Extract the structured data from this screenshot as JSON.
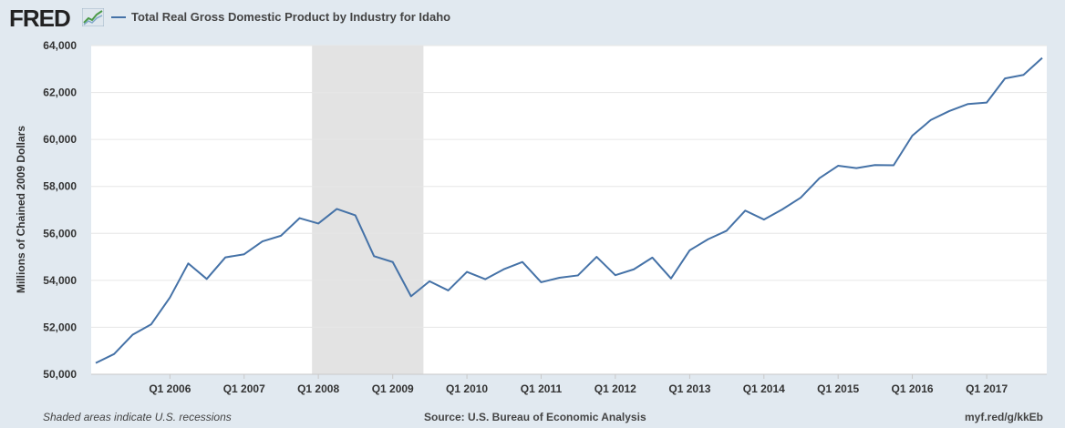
{
  "header": {
    "logo_text": "FRED",
    "legend_label": "Total Real Gross Domestic Product by Industry for Idaho"
  },
  "footer": {
    "note": "Shaded areas indicate U.S. recessions",
    "source": "Source: U.S. Bureau of Economic Analysis",
    "link": "myf.red/g/kkEb"
  },
  "colors": {
    "series": "#4572a7",
    "recession": "#e3e3e3",
    "background": "#e1e9f0",
    "plot_bg": "#ffffff"
  },
  "chart_data": {
    "type": "line",
    "title": "",
    "xlabel": "",
    "ylabel": "Millions of Chained 2009 Dollars",
    "ylim": [
      50000,
      64000
    ],
    "yticks": [
      50000,
      52000,
      54000,
      56000,
      58000,
      60000,
      62000,
      64000
    ],
    "ytick_labels": [
      "50,000",
      "52,000",
      "54,000",
      "56,000",
      "58,000",
      "60,000",
      "62,000",
      "64,000"
    ],
    "xlim": [
      "2005-01-01",
      "2017-10-01"
    ],
    "xticks": [
      "2006-01-01",
      "2007-01-01",
      "2008-01-01",
      "2009-01-01",
      "2010-01-01",
      "2011-01-01",
      "2012-01-01",
      "2013-01-01",
      "2014-01-01",
      "2015-01-01",
      "2016-01-01",
      "2017-01-01"
    ],
    "xtick_labels": [
      "Q1 2006",
      "Q1 2007",
      "Q1 2008",
      "Q1 2009",
      "Q1 2010",
      "Q1 2011",
      "Q1 2012",
      "Q1 2013",
      "Q1 2014",
      "Q1 2015",
      "Q1 2016",
      "Q1 2017"
    ],
    "grid": true,
    "recessions": [
      [
        "2007-12-01",
        "2009-06-01"
      ]
    ],
    "series": [
      {
        "values": [
          {
            "x": "2005-01-01",
            "y": 50480
          },
          {
            "x": "2005-04-01",
            "y": 50860
          },
          {
            "x": "2005-07-01",
            "y": 51680
          },
          {
            "x": "2005-10-01",
            "y": 52130
          },
          {
            "x": "2006-01-01",
            "y": 53270
          },
          {
            "x": "2006-04-01",
            "y": 54720
          },
          {
            "x": "2006-07-01",
            "y": 54060
          },
          {
            "x": "2006-10-01",
            "y": 54980
          },
          {
            "x": "2007-01-01",
            "y": 55110
          },
          {
            "x": "2007-04-01",
            "y": 55660
          },
          {
            "x": "2007-07-01",
            "y": 55900
          },
          {
            "x": "2007-10-01",
            "y": 56650
          },
          {
            "x": "2008-01-01",
            "y": 56420
          },
          {
            "x": "2008-04-01",
            "y": 57040
          },
          {
            "x": "2008-07-01",
            "y": 56770
          },
          {
            "x": "2008-10-01",
            "y": 55030
          },
          {
            "x": "2009-01-01",
            "y": 54780
          },
          {
            "x": "2009-04-01",
            "y": 53320
          },
          {
            "x": "2009-07-01",
            "y": 53960
          },
          {
            "x": "2009-10-01",
            "y": 53570
          },
          {
            "x": "2010-01-01",
            "y": 54360
          },
          {
            "x": "2010-04-01",
            "y": 54050
          },
          {
            "x": "2010-07-01",
            "y": 54470
          },
          {
            "x": "2010-10-01",
            "y": 54780
          },
          {
            "x": "2011-01-01",
            "y": 53920
          },
          {
            "x": "2011-04-01",
            "y": 54110
          },
          {
            "x": "2011-07-01",
            "y": 54210
          },
          {
            "x": "2011-10-01",
            "y": 55000
          },
          {
            "x": "2012-01-01",
            "y": 54220
          },
          {
            "x": "2012-04-01",
            "y": 54470
          },
          {
            "x": "2012-07-01",
            "y": 54970
          },
          {
            "x": "2012-10-01",
            "y": 54080
          },
          {
            "x": "2013-01-01",
            "y": 55280
          },
          {
            "x": "2013-04-01",
            "y": 55750
          },
          {
            "x": "2013-07-01",
            "y": 56110
          },
          {
            "x": "2013-10-01",
            "y": 56970
          },
          {
            "x": "2014-01-01",
            "y": 56590
          },
          {
            "x": "2014-04-01",
            "y": 57020
          },
          {
            "x": "2014-07-01",
            "y": 57520
          },
          {
            "x": "2014-10-01",
            "y": 58350
          },
          {
            "x": "2015-01-01",
            "y": 58880
          },
          {
            "x": "2015-04-01",
            "y": 58780
          },
          {
            "x": "2015-07-01",
            "y": 58910
          },
          {
            "x": "2015-10-01",
            "y": 58900
          },
          {
            "x": "2016-01-01",
            "y": 60160
          },
          {
            "x": "2016-04-01",
            "y": 60830
          },
          {
            "x": "2016-07-01",
            "y": 61210
          },
          {
            "x": "2016-10-01",
            "y": 61510
          },
          {
            "x": "2017-01-01",
            "y": 61570
          },
          {
            "x": "2017-04-01",
            "y": 62600
          },
          {
            "x": "2017-07-01",
            "y": 62750
          },
          {
            "x": "2017-10-01",
            "y": 63470
          }
        ]
      }
    ]
  }
}
